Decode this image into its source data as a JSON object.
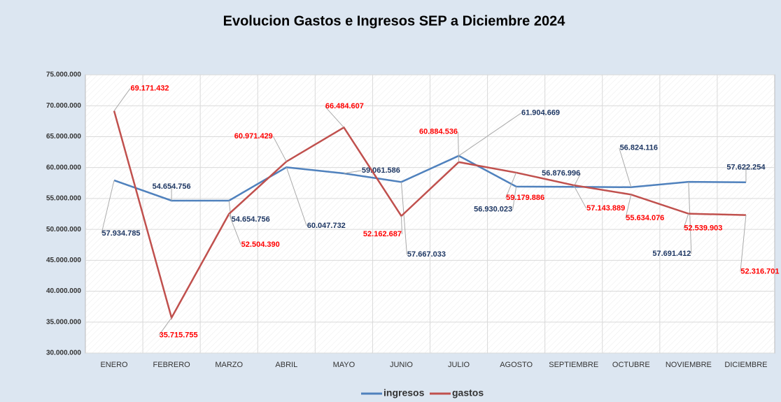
{
  "chart_data": {
    "type": "line",
    "title": "Evolucion Gastos e Ingresos SEP a Diciembre 2024",
    "categories": [
      "ENERO",
      "FEBRERO",
      "MARZO",
      "ABRIL",
      "MAYO",
      "JUNIO",
      "JULIO",
      "AGOSTO",
      "SEPTIEMBRE",
      "OCTUBRE",
      "NOVIEMBRE",
      "DICIEMBRE"
    ],
    "series": [
      {
        "name": "ingresos",
        "color": "#4f81bd",
        "label_color": "#1f3864",
        "values": [
          57934785,
          54654756,
          54654756,
          60047732,
          59061586,
          57667033,
          61904669,
          56930023,
          56876996,
          56824116,
          57691412,
          57622254
        ],
        "value_labels": [
          "57.934.785",
          "54.654.756",
          "54.654.756",
          "60.047.732",
          "59.061.586",
          "57.667.033",
          "61.904.669",
          "56.930.023",
          "56.876.996",
          "56.824.116",
          "57.691.412",
          "57.622.254"
        ]
      },
      {
        "name": "gastos",
        "color": "#c0504d",
        "label_color": "#ff0000",
        "values": [
          69171432,
          35715755,
          52504390,
          60971429,
          66484607,
          52162687,
          60884536,
          59179886,
          57143889,
          55634076,
          52539903,
          52316701
        ],
        "value_labels": [
          "69.171.432",
          "35.715.755",
          "52.504.390",
          "60.971.429",
          "66.484.607",
          "52.162.687",
          "60.884.536",
          "59.179.886",
          "57.143.889",
          "55.634.076",
          "52.539.903",
          "52.316.701"
        ]
      }
    ],
    "ylim": [
      30000000,
      75000000
    ],
    "yticks": [
      {
        "value": 30000000,
        "label": "30.000.000"
      },
      {
        "value": 35000000,
        "label": "35.000.000"
      },
      {
        "value": 40000000,
        "label": "40.000.000"
      },
      {
        "value": 45000000,
        "label": "45.000.000"
      },
      {
        "value": 50000000,
        "label": "50.000.000"
      },
      {
        "value": 55000000,
        "label": "55.000.000"
      },
      {
        "value": 60000000,
        "label": "60.000.000"
      },
      {
        "value": 65000000,
        "label": "65.000.000"
      },
      {
        "value": 70000000,
        "label": "70.000.000"
      },
      {
        "value": 75000000,
        "label": "75.000.000"
      }
    ],
    "grid": true,
    "legend": "bottom"
  }
}
